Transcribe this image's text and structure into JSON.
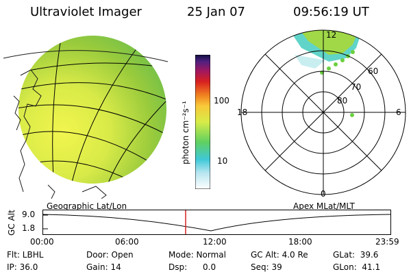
{
  "header": {
    "title": "Ultraviolet Imager",
    "date": "25 Jan 07",
    "time": "09:56:19 UT"
  },
  "colorbar": {
    "unit_label": "photon cm⁻²s⁻¹",
    "ticks": [
      "100",
      "10"
    ]
  },
  "polar_plot": {
    "mlt_labels": [
      "12",
      "18",
      "6",
      "0"
    ],
    "lat_labels": [
      "60",
      "70",
      "80"
    ]
  },
  "panel_labels": {
    "left": "Geographic Lat/Lon",
    "right": "Apex MLat/MLT"
  },
  "alt_axis": {
    "label": "GC Alt",
    "y_ticks": [
      "9.0",
      "1.8"
    ],
    "x_ticks": [
      "00:00",
      "06:00",
      "12:00",
      "18:00",
      "23:59"
    ]
  },
  "info": {
    "row1": {
      "flt": "Flt: LBHL",
      "door": "Door: Open",
      "mode": "Mode: Normal",
      "gc_alt": "GC Alt: 4.0 Re",
      "glat": "GLat:  39.6"
    },
    "row2": {
      "ip": "IP: 36.0",
      "gain": "Gain: 14",
      "dsp": "Dsp:      0.0",
      "seq": "Seq: 39",
      "glon": "GLon:  41.1"
    }
  },
  "colors": {
    "disk_green": "#9ccc3c",
    "disk_yellow": "#e8f04c",
    "grid": "#000000",
    "current_time_marker": "#d62020"
  }
}
